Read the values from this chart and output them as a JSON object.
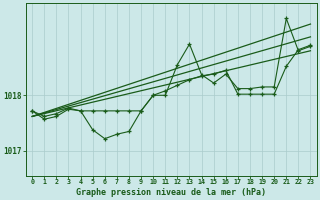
{
  "title": "Graphe pression niveau de la mer (hPa)",
  "background_color": "#cce8e8",
  "grid_color": "#aacccc",
  "line_color": "#1a5c1a",
  "ylim": [
    1016.55,
    1019.65
  ],
  "yticks": [
    1017,
    1018
  ],
  "xlim": [
    -0.5,
    23.5
  ],
  "x_labels": [
    "0",
    "1",
    "2",
    "3",
    "4",
    "5",
    "6",
    "7",
    "8",
    "9",
    "10",
    "11",
    "12",
    "13",
    "14",
    "15",
    "16",
    "17",
    "18",
    "19",
    "20",
    "21",
    "22",
    "23"
  ],
  "series_main": [
    1017.72,
    1017.57,
    1017.62,
    1017.75,
    1017.72,
    1017.38,
    1017.22,
    1017.3,
    1017.35,
    1017.72,
    1018.0,
    1018.0,
    1018.55,
    1018.92,
    1018.37,
    1018.22,
    1018.38,
    1018.12,
    1018.12,
    1018.15,
    1018.15,
    1019.38,
    1018.8,
    1018.88
  ],
  "series_smooth": [
    1017.72,
    1017.62,
    1017.67,
    1017.77,
    1017.72,
    1017.72,
    1017.72,
    1017.72,
    1017.72,
    1017.72,
    1018.0,
    1018.08,
    1018.18,
    1018.28,
    1018.35,
    1018.38,
    1018.45,
    1018.02,
    1018.02,
    1018.02,
    1018.02,
    1018.52,
    1018.82,
    1018.9
  ],
  "trend_lines": [
    {
      "x": [
        0,
        23
      ],
      "y": [
        1017.62,
        1019.28
      ]
    },
    {
      "x": [
        0,
        23
      ],
      "y": [
        1017.62,
        1018.8
      ]
    },
    {
      "x": [
        0,
        23
      ],
      "y": [
        1017.62,
        1019.05
      ]
    }
  ]
}
